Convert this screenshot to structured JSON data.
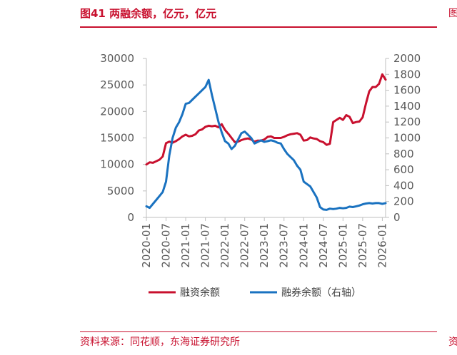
{
  "header": {
    "title": "图41  两融余额，亿元，亿元"
  },
  "footer": {
    "source": "资料来源：同花顺，东海证券研究所"
  },
  "edge": {
    "top_glyph": "图",
    "bottom_glyph": "资"
  },
  "chart_data": {
    "type": "line",
    "title": "图41  两融余额，亿元，亿元",
    "x_tick_labels": [
      "2020-01",
      "2020-07",
      "2021-01",
      "2021-07",
      "2022-01",
      "2022-07",
      "2023-01",
      "2023-07",
      "2024-01",
      "2024-07",
      "2025-01",
      "2025-07",
      "2026-01"
    ],
    "y_left": {
      "ticks": [
        0,
        5000,
        10000,
        15000,
        20000,
        25000,
        30000
      ],
      "range": [
        0,
        30000
      ]
    },
    "y_right": {
      "ticks": [
        0,
        200,
        400,
        600,
        800,
        1000,
        1200,
        1400,
        1600,
        1800,
        2000
      ],
      "range": [
        0,
        2000
      ]
    },
    "colors": {
      "margin": "#c8102e",
      "short": "#1a72c0",
      "axis": "#bfbfbf"
    },
    "legend_position": "bottom",
    "series": [
      {
        "name": "融资余额",
        "axis": "left",
        "points": [
          [
            "2020-01",
            10000
          ],
          [
            "2020-02",
            10400
          ],
          [
            "2020-03",
            10300
          ],
          [
            "2020-04",
            10600
          ],
          [
            "2020-05",
            10900
          ],
          [
            "2020-06",
            11500
          ],
          [
            "2020-07",
            14000
          ],
          [
            "2020-08",
            14300
          ],
          [
            "2020-09",
            14100
          ],
          [
            "2020-10",
            14400
          ],
          [
            "2020-11",
            14800
          ],
          [
            "2020-12",
            15300
          ],
          [
            "2021-01",
            15600
          ],
          [
            "2021-02",
            15300
          ],
          [
            "2021-03",
            15400
          ],
          [
            "2021-04",
            15700
          ],
          [
            "2021-05",
            16400
          ],
          [
            "2021-06",
            16600
          ],
          [
            "2021-07",
            17100
          ],
          [
            "2021-08",
            17300
          ],
          [
            "2021-09",
            17200
          ],
          [
            "2021-10",
            17300
          ],
          [
            "2021-11",
            17000
          ],
          [
            "2021-12",
            17600
          ],
          [
            "2022-01",
            16500
          ],
          [
            "2022-02",
            15800
          ],
          [
            "2022-03",
            15000
          ],
          [
            "2022-04",
            14200
          ],
          [
            "2022-05",
            14300
          ],
          [
            "2022-06",
            14600
          ],
          [
            "2022-07",
            14800
          ],
          [
            "2022-08",
            14900
          ],
          [
            "2022-09",
            14700
          ],
          [
            "2022-10",
            14300
          ],
          [
            "2022-11",
            14500
          ],
          [
            "2022-12",
            14500
          ],
          [
            "2023-01",
            14700
          ],
          [
            "2023-02",
            15200
          ],
          [
            "2023-03",
            15300
          ],
          [
            "2023-04",
            15000
          ],
          [
            "2023-05",
            15000
          ],
          [
            "2023-06",
            15000
          ],
          [
            "2023-07",
            15200
          ],
          [
            "2023-08",
            15500
          ],
          [
            "2023-09",
            15700
          ],
          [
            "2023-10",
            15800
          ],
          [
            "2023-11",
            15900
          ],
          [
            "2023-12",
            15600
          ],
          [
            "2024-01",
            14500
          ],
          [
            "2024-02",
            14600
          ],
          [
            "2024-03",
            15100
          ],
          [
            "2024-04",
            14900
          ],
          [
            "2024-05",
            14800
          ],
          [
            "2024-06",
            14400
          ],
          [
            "2024-07",
            14200
          ],
          [
            "2024-08",
            13700
          ],
          [
            "2024-09",
            13900
          ],
          [
            "2024-10",
            18000
          ],
          [
            "2024-11",
            18400
          ],
          [
            "2024-12",
            18800
          ],
          [
            "2025-01",
            18400
          ],
          [
            "2025-02",
            19300
          ],
          [
            "2025-03",
            19000
          ],
          [
            "2025-04",
            17800
          ],
          [
            "2025-05",
            18000
          ],
          [
            "2025-06",
            18100
          ],
          [
            "2025-07",
            18900
          ],
          [
            "2025-08",
            21500
          ],
          [
            "2025-09",
            23800
          ],
          [
            "2025-10",
            24600
          ],
          [
            "2025-11",
            24600
          ],
          [
            "2025-12",
            25200
          ],
          [
            "2026-01",
            27000
          ],
          [
            "2026-02",
            26000
          ]
        ]
      },
      {
        "name": "融券余额（右轴）",
        "axis": "right",
        "points": [
          [
            "2020-01",
            140
          ],
          [
            "2020-02",
            120
          ],
          [
            "2020-03",
            170
          ],
          [
            "2020-04",
            220
          ],
          [
            "2020-05",
            270
          ],
          [
            "2020-06",
            320
          ],
          [
            "2020-07",
            450
          ],
          [
            "2020-08",
            780
          ],
          [
            "2020-09",
            1000
          ],
          [
            "2020-10",
            1130
          ],
          [
            "2020-11",
            1200
          ],
          [
            "2020-12",
            1300
          ],
          [
            "2021-01",
            1430
          ],
          [
            "2021-02",
            1440
          ],
          [
            "2021-03",
            1480
          ],
          [
            "2021-04",
            1520
          ],
          [
            "2021-05",
            1560
          ],
          [
            "2021-06",
            1600
          ],
          [
            "2021-07",
            1640
          ],
          [
            "2021-08",
            1730
          ],
          [
            "2021-09",
            1540
          ],
          [
            "2021-10",
            1370
          ],
          [
            "2021-11",
            1200
          ],
          [
            "2021-12",
            1070
          ],
          [
            "2022-01",
            960
          ],
          [
            "2022-02",
            930
          ],
          [
            "2022-03",
            860
          ],
          [
            "2022-04",
            900
          ],
          [
            "2022-05",
            980
          ],
          [
            "2022-06",
            1060
          ],
          [
            "2022-07",
            1080
          ],
          [
            "2022-08",
            1040
          ],
          [
            "2022-09",
            1000
          ],
          [
            "2022-10",
            930
          ],
          [
            "2022-11",
            950
          ],
          [
            "2022-12",
            970
          ],
          [
            "2023-01",
            950
          ],
          [
            "2023-02",
            960
          ],
          [
            "2023-03",
            970
          ],
          [
            "2023-04",
            960
          ],
          [
            "2023-05",
            940
          ],
          [
            "2023-06",
            930
          ],
          [
            "2023-07",
            860
          ],
          [
            "2023-08",
            800
          ],
          [
            "2023-09",
            760
          ],
          [
            "2023-10",
            720
          ],
          [
            "2023-11",
            650
          ],
          [
            "2023-12",
            600
          ],
          [
            "2024-01",
            450
          ],
          [
            "2024-02",
            420
          ],
          [
            "2024-03",
            390
          ],
          [
            "2024-04",
            320
          ],
          [
            "2024-05",
            250
          ],
          [
            "2024-06",
            130
          ],
          [
            "2024-07",
            100
          ],
          [
            "2024-08",
            95
          ],
          [
            "2024-09",
            110
          ],
          [
            "2024-10",
            105
          ],
          [
            "2024-11",
            110
          ],
          [
            "2024-12",
            120
          ],
          [
            "2025-01",
            115
          ],
          [
            "2025-02",
            120
          ],
          [
            "2025-03",
            135
          ],
          [
            "2025-04",
            130
          ],
          [
            "2025-05",
            140
          ],
          [
            "2025-06",
            150
          ],
          [
            "2025-07",
            165
          ],
          [
            "2025-08",
            175
          ],
          [
            "2025-09",
            180
          ],
          [
            "2025-10",
            175
          ],
          [
            "2025-11",
            180
          ],
          [
            "2025-12",
            180
          ],
          [
            "2026-01",
            170
          ],
          [
            "2026-02",
            180
          ]
        ]
      }
    ]
  }
}
